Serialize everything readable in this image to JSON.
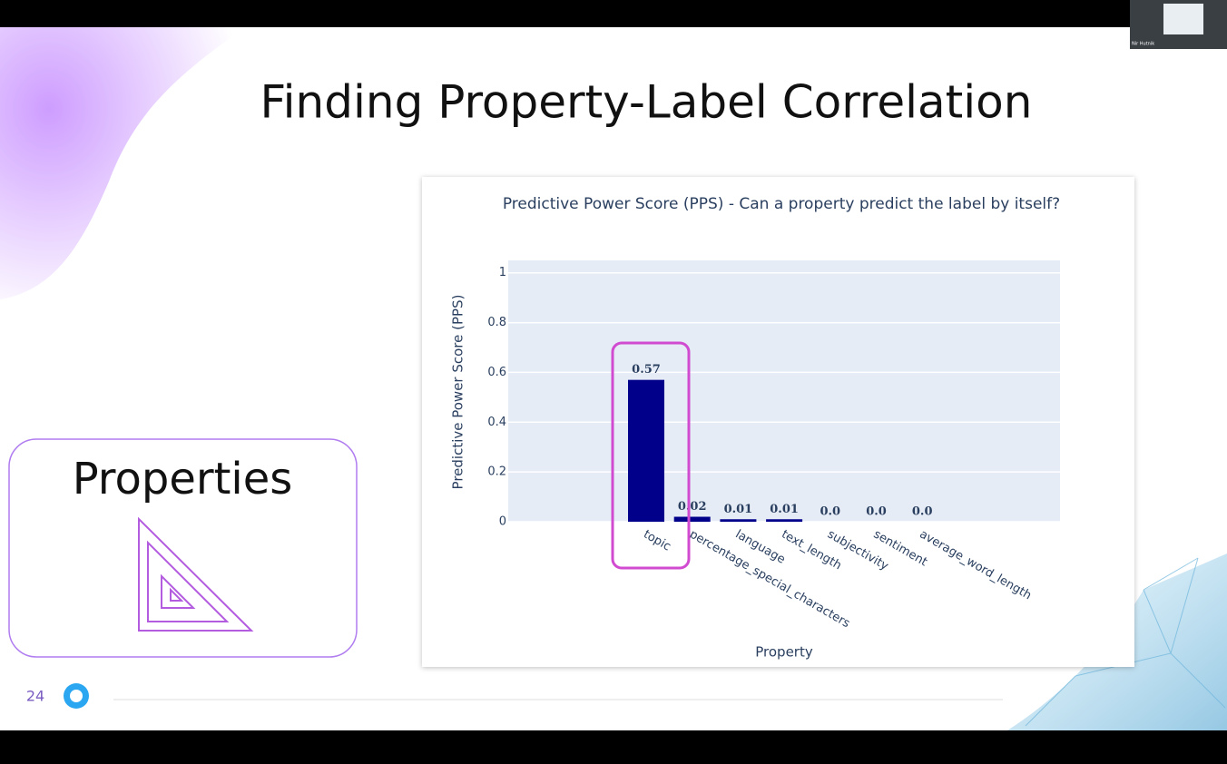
{
  "slide": {
    "title": "Finding Property-Label Correlation",
    "card_title": "Properties",
    "page_number": "24",
    "presenter": "Nir Hutnik"
  },
  "chart_data": {
    "type": "bar",
    "title": "Predictive Power Score (PPS) - Can a property predict the label by itself?",
    "x_label": "Property",
    "y_label": "Predictive Power Score (PPS)",
    "categories": [
      "topic",
      "percentage_special_characters",
      "language",
      "text_length",
      "subjectivity",
      "sentiment",
      "average_word_length"
    ],
    "values": [
      0.57,
      0.02,
      0.01,
      0.01,
      0.0,
      0.0,
      0.0
    ],
    "value_labels": [
      "0.57",
      "0.02",
      "0.01",
      "0.01",
      "0.0",
      "0.0",
      "0.0"
    ],
    "color": "#00008b",
    "ylim": [
      0,
      1.05
    ],
    "yticks": [
      0,
      0.2,
      0.4,
      0.6,
      0.8,
      1
    ],
    "grid": true
  }
}
